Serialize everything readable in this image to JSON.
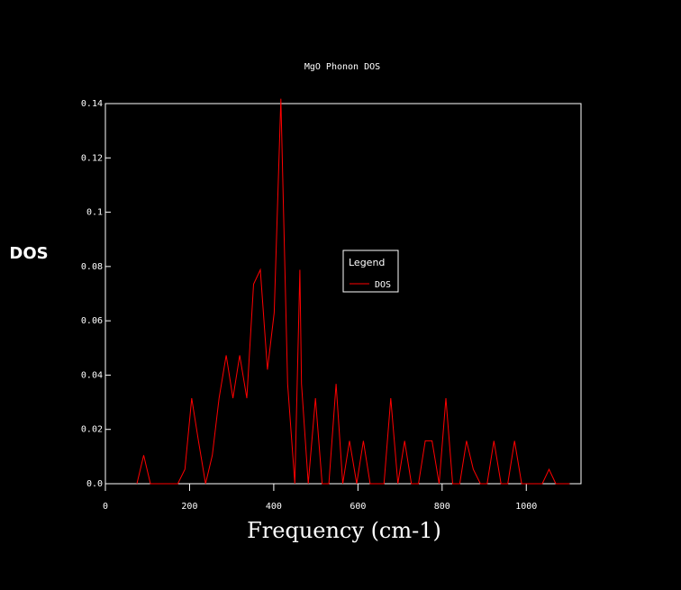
{
  "chart_data": {
    "type": "line",
    "title": "MgO Phonon DOS",
    "xlabel": "Frequency (cm-1)",
    "ylabel": "DOS",
    "xlim": [
      0,
      1130
    ],
    "ylim": [
      0,
      0.14
    ],
    "x_ticks": [
      0,
      200,
      400,
      600,
      800,
      1000
    ],
    "y_ticks": [
      0,
      0.02,
      0.04,
      0.06,
      0.08,
      0.1,
      0.12,
      0.14
    ],
    "y_tick_labels": [
      "0.0",
      "0.02",
      "0.04",
      "0.06",
      "0.08",
      "0.1",
      "0.12",
      "0.14"
    ],
    "grid": false,
    "legend": {
      "title": "Legend",
      "placement": "center-right"
    },
    "colors": {
      "background": "#000000",
      "axes": "#ffffff",
      "series": "#ff0000"
    },
    "series": [
      {
        "name": "DOS",
        "x": [
          75,
          91,
          107,
          123,
          140,
          156,
          172,
          189,
          205,
          221,
          238,
          254,
          270,
          287,
          303,
          319,
          336,
          352,
          368,
          385,
          401,
          417,
          433,
          450,
          462,
          466,
          482,
          499,
          515,
          531,
          548,
          564,
          580,
          597,
          613,
          629,
          646,
          662,
          678,
          695,
          711,
          727,
          744,
          760,
          776,
          793,
          809,
          825,
          842,
          858,
          874,
          891,
          907,
          923,
          940,
          956,
          972,
          989,
          1005,
          1021,
          1038,
          1054,
          1070,
          1087,
          1103
        ],
        "y": [
          0,
          0.0105,
          0,
          0,
          0,
          0,
          0,
          0.0053,
          0.0315,
          0.0158,
          0,
          0.0105,
          0.0315,
          0.0473,
          0.0315,
          0.0473,
          0.0315,
          0.0735,
          0.0788,
          0.042,
          0.063,
          0.1418,
          0.0368,
          0,
          0.0788,
          0.0368,
          0,
          0.0315,
          0,
          0,
          0.0368,
          0,
          0.0158,
          0,
          0.0158,
          0,
          0,
          0,
          0.0315,
          0,
          0.0158,
          0,
          0,
          0.0158,
          0.0158,
          0,
          0.0315,
          0,
          0,
          0.0158,
          0.0053,
          0,
          0,
          0.0158,
          0,
          0,
          0.0158,
          0,
          0,
          0,
          0,
          0.0053,
          0,
          0,
          0
        ]
      }
    ]
  }
}
